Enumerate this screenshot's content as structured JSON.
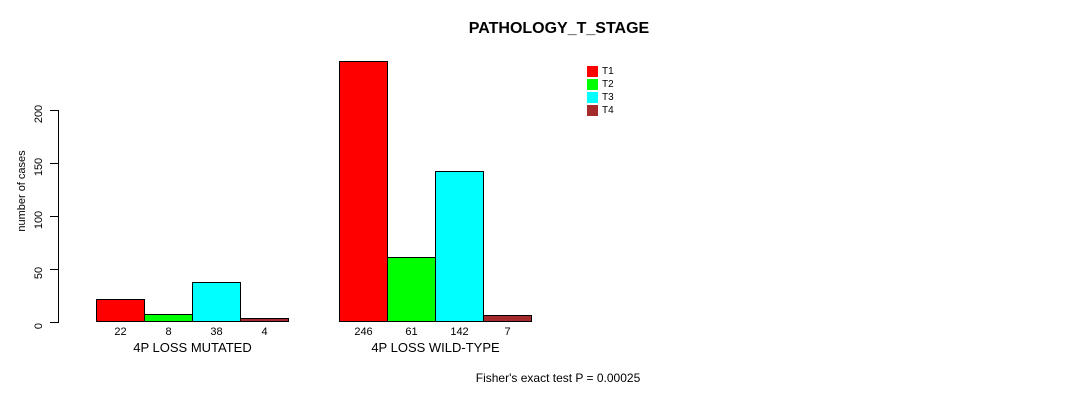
{
  "chart_data": {
    "type": "bar",
    "title": "PATHOLOGY_T_STAGE",
    "ylabel": "number of cases",
    "xlabel": "",
    "yticks": [
      "0",
      "50",
      "100",
      "150",
      "200"
    ],
    "ytick_values": [
      0,
      50,
      100,
      150,
      200
    ],
    "ylim": [
      0,
      250
    ],
    "grid": false,
    "legend_position": "top-right",
    "categories": [
      "4P LOSS MUTATED",
      "4P LOSS WILD-TYPE"
    ],
    "series": [
      {
        "name": "T1",
        "color": "#ff0000",
        "values": [
          22,
          246
        ]
      },
      {
        "name": "T2",
        "color": "#00ff00",
        "values": [
          8,
          61
        ]
      },
      {
        "name": "T3",
        "color": "#00ffff",
        "values": [
          38,
          142
        ]
      },
      {
        "name": "T4",
        "color": "#a52a2a",
        "values": [
          4,
          7
        ]
      }
    ],
    "bar_value_labels": true,
    "footer": "Fisher's exact test P = 0.00025",
    "colors": {
      "axis": "#000000",
      "text": "#000000",
      "background": "#ffffff"
    }
  }
}
